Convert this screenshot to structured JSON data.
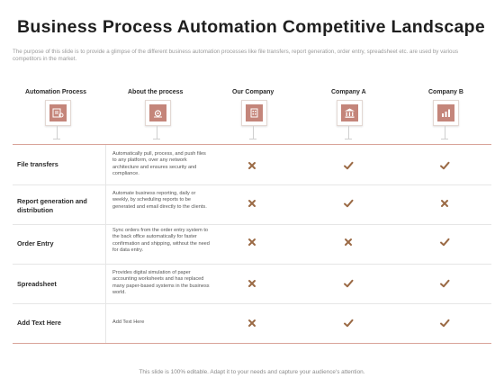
{
  "title": "Business Process Automation Competitive Landscape",
  "subtitle": "The purpose of this slide is to provide a glimpse of the different business automation processes like file transfers, report generation, order entry, spreadsheet etc. are used by various competitors in the market.",
  "columns": [
    {
      "label": "Automation Process",
      "icon": "process-icon"
    },
    {
      "label": "About the process",
      "icon": "gear-icon"
    },
    {
      "label": "Our Company",
      "icon": "building-icon"
    },
    {
      "label": "Company A",
      "icon": "bank-icon"
    },
    {
      "label": "Company B",
      "icon": "chart-icon"
    }
  ],
  "rows": [
    {
      "label": "File transfers",
      "description": "Automatically pull, process, and push files to any platform, over any network architecture and ensures security and compliance.",
      "marks": [
        "cross",
        "check",
        "check"
      ]
    },
    {
      "label": "Report generation and distribution",
      "description": "Automate business reporting, daily or weekly, by scheduling reports to be generated and email directly to the clients.",
      "marks": [
        "cross",
        "check",
        "cross"
      ]
    },
    {
      "label": "Order Entry",
      "description": "Sync orders from the order entry system to the back office automatically for faster confirmation and shipping, without the need for data entry.",
      "marks": [
        "cross",
        "cross",
        "check"
      ]
    },
    {
      "label": "Spreadsheet",
      "description": "Provides digital simulation of paper accounting worksheets and has replaced many paper-based systems in the business world.",
      "marks": [
        "cross",
        "check",
        "check"
      ]
    },
    {
      "label": "Add Text Here",
      "description": "Add Text Here",
      "marks": [
        "cross",
        "check",
        "check"
      ]
    }
  ],
  "footer": "This slide is 100% editable. Adapt it to your needs and capture your audience's attention.",
  "colors": {
    "accent": "#c4857a",
    "mark": "#9b6a45"
  }
}
